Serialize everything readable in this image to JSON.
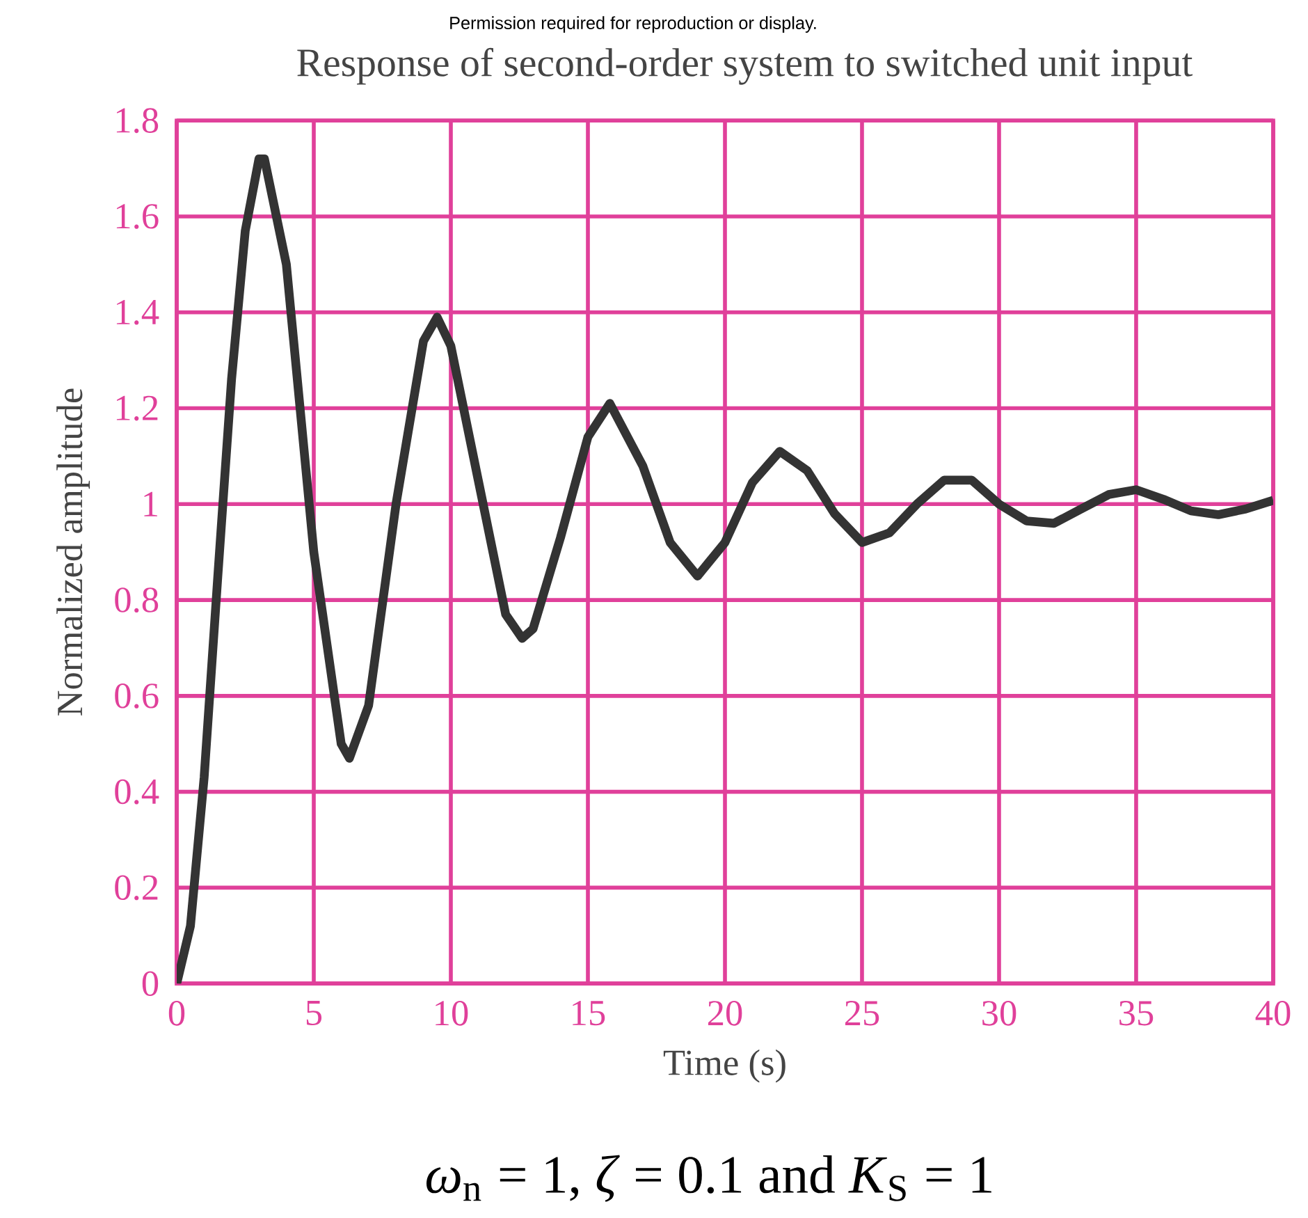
{
  "chart_data": {
    "type": "line",
    "title": "Response of second-order system to switched unit input",
    "xlabel": "Time (s)",
    "ylabel": "Normalized amplitude",
    "annotations": [
      "Permission required for reproduction or display.",
      "*ω*$_{n}$ = 1, *ζ* = 0.1 and *K*$_{S}$ = 1"
    ],
    "x": [
      0,
      0.5,
      1,
      1.5,
      2,
      2.5,
      3,
      3.2,
      4,
      5,
      6,
      6.3,
      7,
      8,
      9,
      9.5,
      10,
      11,
      12,
      12.6,
      13,
      14,
      15,
      15.8,
      17,
      18,
      19,
      20,
      21,
      22,
      23,
      24,
      25,
      26,
      27,
      28,
      29,
      30,
      31,
      32,
      33,
      34,
      35,
      36,
      37,
      38,
      39,
      40
    ],
    "series": [
      {
        "color": "#333333",
        "values": [
          0,
          0.12,
          0.43,
          0.85,
          1.26,
          1.57,
          1.72,
          1.72,
          1.5,
          0.9,
          0.5,
          0.47,
          0.58,
          1.0,
          1.34,
          1.39,
          1.33,
          1.05,
          0.77,
          0.72,
          0.74,
          0.93,
          1.14,
          1.21,
          1.08,
          0.92,
          0.85,
          0.92,
          1.045,
          1.11,
          1.07,
          0.98,
          0.92,
          0.94,
          1.0,
          1.05,
          1.05,
          1.0,
          0.965,
          0.96,
          0.99,
          1.02,
          1.03,
          1.01,
          0.986,
          0.978,
          0.99,
          1.008
        ]
      }
    ],
    "xlim": [
      0,
      40
    ],
    "ylim": [
      0,
      1.8
    ],
    "xticks": [
      0,
      5,
      10,
      15,
      20,
      25,
      30,
      35,
      40
    ],
    "yticks": [
      0,
      0.2,
      0.4,
      0.6,
      0.8,
      1,
      1.2,
      1.4,
      1.6,
      1.8
    ],
    "grid": true,
    "marker": "none",
    "line_style": "solid"
  }
}
